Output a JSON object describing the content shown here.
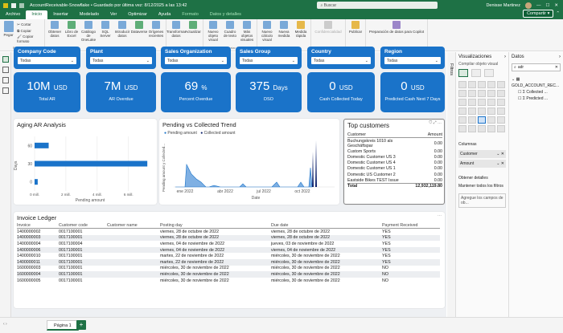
{
  "titlebar": {
    "title": "AccountReceivable-Snowflake • Guardado por última vez: 8/12/2025 a las 13:42",
    "search": "Buscar",
    "user": "Denisse Martinez"
  },
  "menubar": {
    "tabs": [
      "Archivo",
      "Inicio",
      "Insertar",
      "Modelado",
      "Ver",
      "Optimizar",
      "Ayuda",
      "Formato",
      "Datos y detalles"
    ],
    "share": "Compartir"
  },
  "ribbon": {
    "clipboard": {
      "cut": "Cortar",
      "copy": "Copiar",
      "paste_format": "Copiar formato",
      "paste": "Pegar"
    },
    "buttons": [
      "Obtener datos",
      "Libro de Excel",
      "Catálogo de OneLake",
      "SQL Server",
      "Introducir datos",
      "Dataverse",
      "Orígenes recientes",
      "Transformar datos",
      "Actualizar",
      "Nuevo objeto visual",
      "Cuadro de texto",
      "Más objetos visuales",
      "Nuevo cálculo visual",
      "Nueva medida",
      "Medida rápida",
      "Confidencialidad",
      "Publicar",
      "Preparación de datos para Copilot"
    ],
    "groups": [
      "Portapapeles",
      "Datos",
      "Consultas",
      "Insertar",
      "Cálculos",
      "Confidencialidad",
      "Compartir",
      "Copilot"
    ]
  },
  "slicers": [
    {
      "label": "Company Code",
      "value": "Todas"
    },
    {
      "label": "Plant",
      "value": "Todas"
    },
    {
      "label": "Sales Organization",
      "value": "Todas"
    },
    {
      "label": "Sales Group",
      "value": "Todas"
    },
    {
      "label": "Country",
      "value": "Todas"
    },
    {
      "label": "Region",
      "value": "Todas"
    }
  ],
  "kpis": [
    {
      "value": "10M",
      "unit": "USD",
      "label": "Total AR"
    },
    {
      "value": "7M",
      "unit": "USD",
      "label": "AR Overdue"
    },
    {
      "value": "69",
      "unit": "%",
      "label": "Percent Overdue"
    },
    {
      "value": "375",
      "unit": "Days",
      "label": "DSO"
    },
    {
      "value": "0",
      "unit": "USD",
      "label": "Cash Collected Today"
    },
    {
      "value": "0",
      "unit": "USD",
      "label": "Predicted Cash Next 7 Days"
    }
  ],
  "aging": {
    "title": "Aging AR Analysis",
    "ylabel": "Days",
    "xlabel": "Pending amount",
    "chart_data": {
      "type": "bar",
      "orientation": "horizontal",
      "categories": [
        "60",
        "30",
        "0"
      ],
      "values": [
        0.9,
        7.2,
        0.2
      ],
      "unit": "mill.",
      "xticks": [
        "0 mill.",
        "2 mill.",
        "4 mill.",
        "6 mill."
      ],
      "xlim": [
        0,
        7.5
      ],
      "ylabel": "Days",
      "xlabel": "Pending amount"
    }
  },
  "trend": {
    "title": "Pending vs Collected Trend",
    "ylabel": "Pending amount y Collected...",
    "xlabel": "Date",
    "legend": [
      "Pending amount",
      "Collected amount"
    ],
    "chart_data": {
      "type": "area",
      "x": [
        "ene 2022",
        "abr 2022",
        "jul 2022",
        "oct 2022"
      ],
      "series": [
        {
          "name": "Pending amount",
          "color": "#1a73c9"
        },
        {
          "name": "Collected amount",
          "color": "#0b1f6b"
        }
      ]
    }
  },
  "topcust": {
    "title": "Top customers",
    "headers": [
      "Customer",
      "Amount"
    ],
    "rows": [
      [
        "Buchungskreis 1010 als Geschäftspar",
        "0.00"
      ],
      [
        "Custom Sports",
        "0.00"
      ],
      [
        "Domestic Customer US 3",
        "0.00"
      ],
      [
        "Domestic Customer US 4",
        "0.00"
      ],
      [
        "Domestic Customer US 1",
        "0.00"
      ],
      [
        "Domestic US Customer 2",
        "0.00"
      ],
      [
        "Eastside Bikes TEST Issue",
        "0.00"
      ]
    ],
    "total": [
      "Total",
      "12,932,119.80"
    ]
  },
  "ledger": {
    "title": "Invoice Ledger",
    "headers": [
      "Invoice",
      "Customer code",
      "Customer name",
      "Posting day",
      "Due date",
      "Payment Received"
    ],
    "rows": [
      [
        "1400000002",
        "0017100001",
        "",
        "viernes, 28 de octubre de 2022",
        "viernes, 28 de octubre de 2022",
        "YES"
      ],
      [
        "1400000003",
        "0017100001",
        "",
        "viernes, 28 de octubre de 2022",
        "viernes, 28 de octubre de 2022",
        "YES"
      ],
      [
        "1400000004",
        "0017100004",
        "",
        "viernes, 04 de noviembre de 2022",
        "jueves, 03 de noviembre de 2022",
        "YES"
      ],
      [
        "1400000006",
        "0017100001",
        "",
        "viernes, 04 de noviembre de 2022",
        "viernes, 04 de noviembre de 2022",
        "YES"
      ],
      [
        "1400000010",
        "0017100001",
        "",
        "martes, 22 de noviembre de 2022",
        "miércoles, 30 de noviembre de 2022",
        "YES"
      ],
      [
        "1400000011",
        "0017100001",
        "",
        "martes, 22 de noviembre de 2022",
        "miércoles, 30 de noviembre de 2022",
        "YES"
      ],
      [
        "1600000003",
        "0017100001",
        "",
        "miércoles, 30 de noviembre de 2022",
        "miércoles, 30 de noviembre de 2022",
        "NO"
      ],
      [
        "1600000004",
        "0017100001",
        "",
        "miércoles, 30 de noviembre de 2022",
        "miércoles, 30 de noviembre de 2022",
        "NO"
      ],
      [
        "1600000005",
        "0017100001",
        "",
        "miércoles, 30 de noviembre de 2022",
        "miércoles, 30 de noviembre de 2022",
        "NO"
      ]
    ]
  },
  "viz": {
    "title": "Visualizaciones",
    "sub": "Compilar objeto visual",
    "fields_label": "Columnas",
    "field1": "Customer",
    "field2": "Amount",
    "drill_label": "Obtener detalles",
    "keep_filters": "Mantener todos los filtros",
    "drill_placeholder": "Agregue los campos de ob..."
  },
  "filtros": "Filtros",
  "datos": {
    "title": "Datos",
    "search": "adr",
    "tree": [
      "GOLD_ACCOUNT_REC...",
      "Collected ...",
      "Predicted ..."
    ]
  },
  "status": {
    "page_tab": "Página 1",
    "add": "+"
  }
}
